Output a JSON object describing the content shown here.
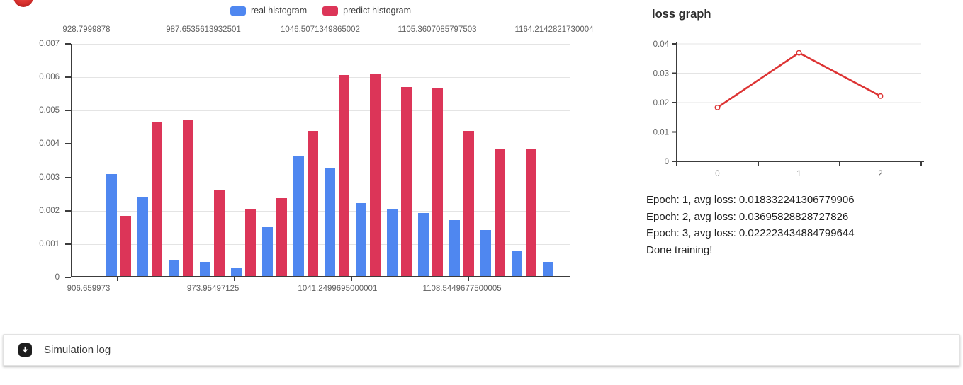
{
  "histogram_panel": {
    "legend": [
      {
        "label": "real histogram",
        "color": "#4f87f0"
      },
      {
        "label": "predict histogram",
        "color": "#dc3558"
      }
    ]
  },
  "loss_panel": {
    "title": "loss graph",
    "log_lines": [
      "Epoch: 1, avg loss: 0.018332241306779906",
      "Epoch: 2, avg loss: 0.03695828828727826",
      "Epoch: 3, avg loss: 0.022223434884799644",
      "Done training!"
    ]
  },
  "simulation_log": {
    "label": "Simulation log",
    "icon": "arrow-down-square-icon"
  },
  "chart_data": [
    {
      "type": "bar",
      "title": "",
      "legend_position": "top",
      "grid": true,
      "ylim": [
        0,
        0.007
      ],
      "y_tick_labels": [
        "0.007",
        "0.006",
        "0.005",
        "0.004",
        "0.003",
        "0.002",
        "0.001",
        "0"
      ],
      "top_axis_tick_labels": [
        "928.7999878",
        "987.6535613932501",
        "1046.5071349865002",
        "1105.3607085797503",
        "1164.2142821730004"
      ],
      "bottom_axis_tick_labels": [
        "906.659973",
        "973.95497125",
        "1041.2499695000001",
        "1108.5449677500005"
      ],
      "series": [
        {
          "name": "real histogram",
          "color": "#4f87f0",
          "values": [
            0.00305,
            0.00237,
            0.00047,
            0.00042,
            0.00024,
            0.00146,
            0.0036,
            0.00324,
            0.00218,
            0.002,
            0.00189,
            0.00167,
            0.00138,
            0.00076,
            0.00042
          ]
        },
        {
          "name": "predict histogram",
          "color": "#dc3558",
          "values": [
            0.0018,
            0.0046,
            0.00466,
            0.00257,
            0.00199,
            0.00233,
            0.00435,
            0.00603,
            0.00604,
            0.00567,
            0.00564,
            0.00434,
            0.00381,
            0.00381
          ]
        }
      ]
    },
    {
      "type": "line",
      "title": "loss graph",
      "x": [
        0,
        1,
        2
      ],
      "x_tick_labels": [
        "0",
        "1",
        "2"
      ],
      "values": [
        0.018332241306779906,
        0.03695828828727826,
        0.022223434884799644
      ],
      "ylim": [
        0,
        0.04
      ],
      "y_tick_labels": [
        "0.04",
        "0.03",
        "0.02",
        "0.01",
        "0"
      ],
      "line_color": "#dd3333",
      "marker": "open-circle",
      "grid": true,
      "legend_position": "none"
    }
  ]
}
